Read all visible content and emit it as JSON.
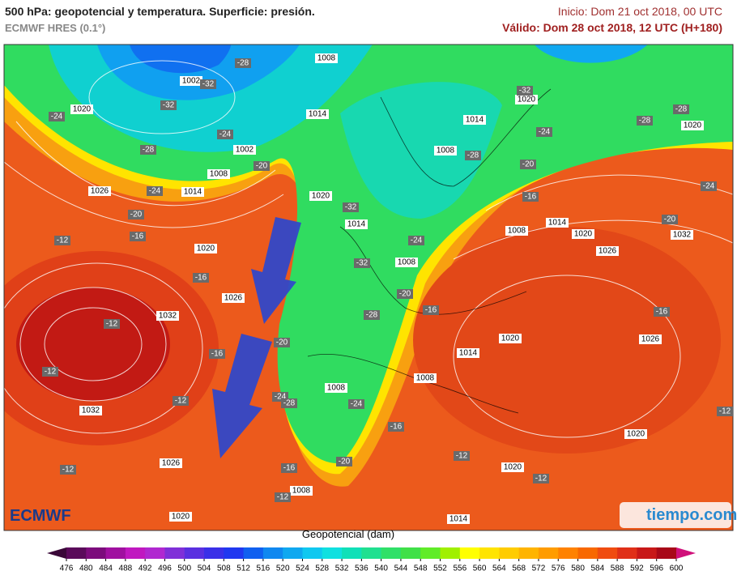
{
  "header": {
    "title": "500 hPa: geopotencial y temperatura. Superficie: presión.",
    "model": "ECMWF HRES (0.1°)",
    "init": "Inicio: Dom 21 oct 2018, 00 UTC",
    "valid": "Válido: Dom 28 oct 2018, 12 UTC (H+180)"
  },
  "map": {
    "isobar_labels": [
      "1008",
      "1002",
      "1020",
      "1014",
      "1002",
      "1008",
      "1014",
      "1026",
      "1020",
      "1014",
      "1020",
      "1026",
      "1032",
      "1032",
      "1026",
      "1020",
      "1008",
      "1008",
      "1008",
      "1014",
      "1020",
      "1008",
      "1008",
      "1014",
      "1020",
      "1026",
      "1032",
      "1026",
      "1020",
      "1020",
      "1014",
      "1008",
      "1014",
      "1020",
      "1020"
    ],
    "temperature_labels": [
      "-28",
      "-32",
      "-32",
      "-24",
      "-28",
      "-24",
      "-20",
      "-24",
      "-20",
      "-16",
      "-12",
      "-16",
      "-12",
      "-16",
      "-12",
      "-12",
      "-12",
      "-20",
      "-24",
      "-28",
      "-24",
      "-20",
      "-16",
      "-12",
      "-16",
      "-12",
      "-12",
      "-16",
      "-20",
      "-28",
      "-32",
      "-24",
      "-32",
      "-28",
      "-32",
      "-24",
      "-20",
      "-16",
      "-28",
      "-28",
      "-24",
      "-20",
      "-16",
      "-12"
    ]
  },
  "logos": {
    "left": "ECMWF",
    "right": "tiempo.com"
  },
  "colorbar": {
    "title": "Geopotencial (dam)",
    "ticks": [
      476,
      480,
      484,
      488,
      492,
      496,
      500,
      504,
      508,
      512,
      516,
      520,
      524,
      528,
      532,
      536,
      540,
      544,
      548,
      552,
      556,
      560,
      564,
      568,
      572,
      576,
      580,
      584,
      588,
      592,
      596,
      600
    ],
    "colors": [
      "#3a0838",
      "#5a0a5a",
      "#7c0c7c",
      "#a010a0",
      "#c018c0",
      "#b028d0",
      "#8030d8",
      "#5a30e0",
      "#3a30e8",
      "#2038f0",
      "#1060f0",
      "#1088f0",
      "#10a8f0",
      "#10c8f0",
      "#10e0e0",
      "#10e0b8",
      "#20e090",
      "#30e068",
      "#40e048",
      "#60ec28",
      "#a0f000",
      "#ffff00",
      "#ffe400",
      "#ffcc00",
      "#ffb400",
      "#ff9c00",
      "#ff8200",
      "#f86800",
      "#f04c10",
      "#e03018",
      "#c81818",
      "#a80818",
      "#d0107a"
    ]
  }
}
